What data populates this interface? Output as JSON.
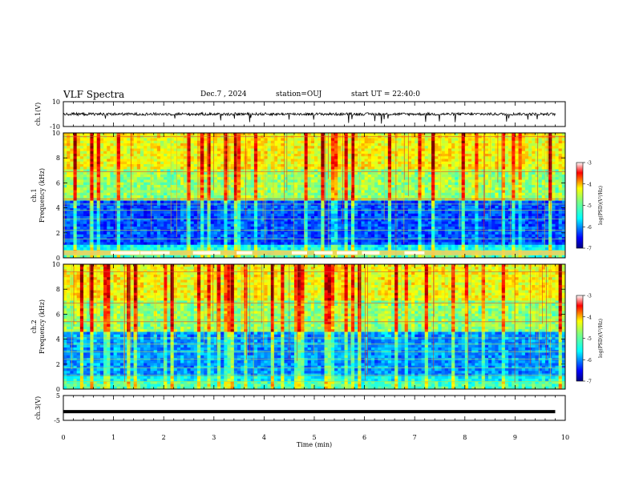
{
  "header": {
    "title": "VLF Spectra",
    "date": "Dec.7 , 2024",
    "station": "station=OUJ",
    "start": "start UT = 22:40:0"
  },
  "colorbar": {
    "label": "log(PSD)(V²/Hz)",
    "ticks": [
      "-3",
      "-4",
      "-5",
      "-6",
      "-7"
    ]
  },
  "chart_data": [
    {
      "type": "line",
      "panel": "ch1-waveform",
      "ylabel": "ch.1(V)",
      "ylim": [
        -10,
        10
      ],
      "yticks": [
        "10",
        "-10"
      ],
      "baseline": 0,
      "description_values": "noisy waveform near 0 V with occasional negative spikes"
    },
    {
      "type": "heatmap",
      "panel": "ch1-spectrogram",
      "ylabel": "ch.1\nFrequency (kHz)",
      "ylim": [
        0,
        10
      ],
      "yticks": [
        "0",
        "2",
        "4",
        "6",
        "8",
        "10"
      ],
      "zlim": [
        -7,
        -3
      ],
      "colormap": "jet"
    },
    {
      "type": "heatmap",
      "panel": "ch2-spectrogram",
      "ylabel": "ch.2\nFrequency (kHz)",
      "ylim": [
        0,
        10
      ],
      "yticks": [
        "0",
        "2",
        "4",
        "6",
        "8",
        "10"
      ],
      "zlim": [
        -7,
        -3
      ],
      "colormap": "jet"
    },
    {
      "type": "line",
      "panel": "ch3-waveform",
      "ylabel": "ch.3(V)",
      "ylim": [
        -5,
        5
      ],
      "yticks": [
        "5",
        "-5"
      ],
      "baseline": -1.5
    }
  ],
  "xaxis": {
    "label": "Time (min)",
    "xlim": [
      0,
      10
    ],
    "ticks": [
      "0",
      "1",
      "2",
      "3",
      "4",
      "5",
      "6",
      "7",
      "8",
      "9",
      "10"
    ]
  },
  "colors": {
    "axis": "#000000",
    "waveform": "#000000"
  }
}
